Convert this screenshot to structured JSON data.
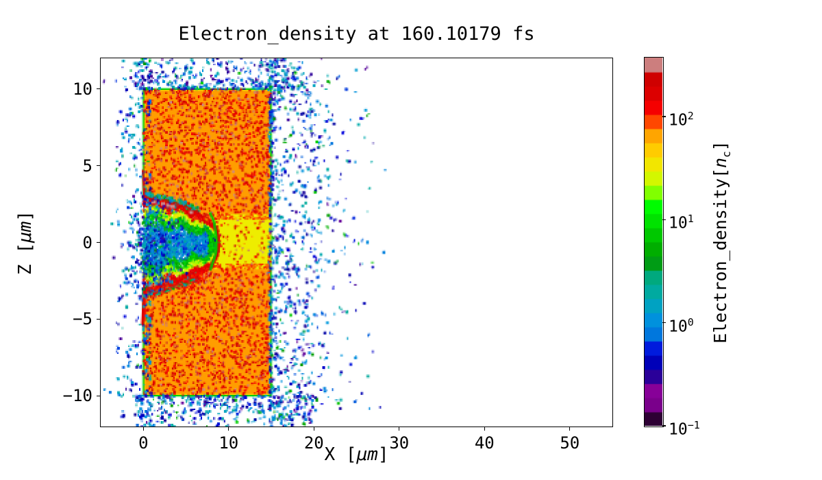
{
  "figure": {
    "background": "#ffffff"
  },
  "chart_data": {
    "type": "heatmap",
    "title": "Electron_density at 160.10179 fs",
    "xlabel": {
      "pre": "X [",
      "math": "μm",
      "post": "]"
    },
    "ylabel": {
      "pre": "Z [",
      "math": "μm",
      "post": "]"
    },
    "xlim": [
      -5,
      55
    ],
    "ylim": [
      -12,
      12
    ],
    "xticks": [
      {
        "v": 0,
        "label": "0"
      },
      {
        "v": 10,
        "label": "10"
      },
      {
        "v": 20,
        "label": "20"
      },
      {
        "v": 30,
        "label": "30"
      },
      {
        "v": 40,
        "label": "40"
      },
      {
        "v": 50,
        "label": "50"
      }
    ],
    "yticks": [
      {
        "v": 10,
        "label": "10"
      },
      {
        "v": 5,
        "label": "5"
      },
      {
        "v": 0,
        "label": "0"
      },
      {
        "v": -5,
        "label": "−5"
      },
      {
        "v": -10,
        "label": "−10"
      }
    ],
    "grid": false,
    "colorbar": {
      "label": {
        "pre": "Electron_density[",
        "var": "n",
        "sub": "c",
        "post": "]"
      },
      "scale": "log",
      "vmin": 0.1,
      "vmax": 374,
      "ticks": [
        {
          "value": 100,
          "base": "10",
          "exp": "2"
        },
        {
          "value": 10,
          "base": "10",
          "exp": "1"
        },
        {
          "value": 1,
          "base": "10",
          "exp": "0"
        },
        {
          "value": 0.1,
          "base": "10",
          "exp": "−1"
        }
      ],
      "quant_bands": 26
    },
    "colormap": {
      "name": "nipy_spectral",
      "stops": [
        [
          0,
          0,
          0,
          0
        ],
        [
          0.05,
          119,
          0,
          136
        ],
        [
          0.1,
          136,
          0,
          153
        ],
        [
          0.15,
          0,
          0,
          153
        ],
        [
          0.2,
          0,
          0,
          221
        ],
        [
          0.25,
          0,
          119,
          221
        ],
        [
          0.3,
          0,
          153,
          221
        ],
        [
          0.35,
          0,
          170,
          170
        ],
        [
          0.4,
          0,
          170,
          136
        ],
        [
          0.45,
          0,
          153,
          0
        ],
        [
          0.5,
          0,
          187,
          0
        ],
        [
          0.55,
          0,
          221,
          0
        ],
        [
          0.6,
          0,
          255,
          0
        ],
        [
          0.65,
          187,
          255,
          0
        ],
        [
          0.7,
          238,
          238,
          0
        ],
        [
          0.75,
          255,
          204,
          0
        ],
        [
          0.8,
          255,
          153,
          0
        ],
        [
          0.85,
          255,
          0,
          0
        ],
        [
          0.9,
          221,
          0,
          0
        ],
        [
          0.95,
          204,
          0,
          0
        ],
        [
          1,
          204,
          204,
          204
        ]
      ]
    },
    "features": {
      "target_slab": {
        "x": [
          0,
          15
        ],
        "z": [
          -10,
          10
        ],
        "density_nc": 70,
        "speckles": {
          "count": 3200,
          "density_nc": [
            110,
            330
          ]
        },
        "edge_density_nc": 8
      },
      "channel": {
        "x": [
          8.3,
          15
        ],
        "z": [
          -1.75,
          1.85
        ],
        "density_nc": 32,
        "edge_speckles": 170,
        "inner_speckles": 60,
        "edge_speckle_density_nc": [
          60,
          150
        ]
      },
      "cavity": {
        "apex": [
          8.85,
          0
        ],
        "top_boundary": [
          [
            0,
            2.8
          ],
          [
            1.5,
            2.62
          ],
          [
            3,
            2.45
          ],
          [
            4.5,
            2.2
          ],
          [
            6,
            1.85
          ],
          [
            7,
            1.55
          ],
          [
            8,
            1.15
          ],
          [
            8.6,
            0.7
          ],
          [
            8.85,
            0
          ]
        ],
        "bottom_boundary": [
          [
            0,
            -3.0
          ],
          [
            1.5,
            -2.85
          ],
          [
            3,
            -2.6
          ],
          [
            4.5,
            -2.35
          ],
          [
            6,
            -2.05
          ],
          [
            7,
            -1.8
          ],
          [
            8,
            -1.35
          ],
          [
            8.6,
            -0.8
          ],
          [
            8.85,
            0
          ]
        ],
        "bands": [
          {
            "u": [
              0.86,
              1.05
            ],
            "density_nc": [
              90,
              260
            ]
          },
          {
            "u": [
              0.66,
              0.86
            ],
            "density_nc": [
              14,
              40
            ]
          },
          {
            "u": [
              0.4,
              0.66
            ],
            "density_nc": [
              3,
              11
            ]
          },
          {
            "u": [
              0,
              0.4
            ],
            "density_nc": [
              0.5,
              2.2
            ],
            "white_fraction": 0.3
          }
        ],
        "speckle_count": 4600,
        "fringe_count": 520,
        "rim_density_nc": 150,
        "jets": {
          "top": [
            [
              0.1,
              2.8
            ],
            [
              -0.05,
              4.7
            ]
          ],
          "bottom": [
            [
              0.15,
              -3.0
            ],
            [
              -0.1,
              -5.4
            ]
          ]
        },
        "saturated_blobs": [
          [
            1.2,
            2.62
          ],
          [
            1.7,
            2.56
          ],
          [
            2.3,
            2.5
          ],
          [
            2.9,
            2.42
          ],
          [
            3.4,
            2.33
          ],
          [
            5.6,
            1.95
          ],
          [
            0.8,
            -2.8
          ],
          [
            1.5,
            -2.68
          ],
          [
            2.2,
            -2.55
          ]
        ],
        "saturated_density_nc": 330,
        "apex_arc": [
          [
            8.25,
            1.75
          ],
          [
            8.6,
            1.3
          ],
          [
            8.85,
            0.7
          ],
          [
            8.95,
            0
          ],
          [
            8.85,
            -0.7
          ],
          [
            8.55,
            -1.2
          ],
          [
            8.25,
            -1.65
          ]
        ],
        "green_arc": [
          [
            7.8,
            1.95
          ],
          [
            8.3,
            1.2
          ],
          [
            8.55,
            0.4
          ],
          [
            8.55,
            -0.5
          ],
          [
            8.2,
            -1.3
          ],
          [
            7.8,
            -1.8
          ]
        ],
        "green_arc_density_nc": 7
      },
      "scatter": {
        "density_nc": [
          0.25,
          2.2
        ],
        "green_fraction": 0.06,
        "green_density_nc": [
          3,
          8
        ],
        "clouds": [
          {
            "name": "right-edge",
            "x": [
              14.8,
              19
            ],
            "z": [
              -12,
              12
            ],
            "count": 640,
            "bias": 1.8
          },
          {
            "name": "right-tail",
            "x": [
              19,
              28.5
            ],
            "z": [
              -11,
              11
            ],
            "count": 240,
            "falloff": "exp"
          },
          {
            "name": "left-edge",
            "x": [
              -3.2,
              0.8
            ],
            "z": [
              -12,
              12
            ],
            "count": 320,
            "bias": 1.7
          },
          {
            "name": "top",
            "x": [
              -1,
              19
            ],
            "z": [
              10,
              12
            ],
            "count": 330,
            "bias": 1.6
          },
          {
            "name": "bottom",
            "x": [
              -1,
              20
            ],
            "z": [
              -12,
              -10
            ],
            "count": 350,
            "bias": 1.6
          },
          {
            "name": "mouth-halo",
            "x": [
              -2.5,
              7
            ],
            "z": [
              -7,
              6
            ],
            "count": 430,
            "gaussian": {
              "cx": 1.2,
              "cz": -0.5,
              "sx": 2.6,
              "sz": 3.4
            }
          },
          {
            "name": "background",
            "x": [
              -4.8,
              27
            ],
            "z": [
              -12,
              12
            ],
            "count": 240
          }
        ]
      }
    }
  }
}
